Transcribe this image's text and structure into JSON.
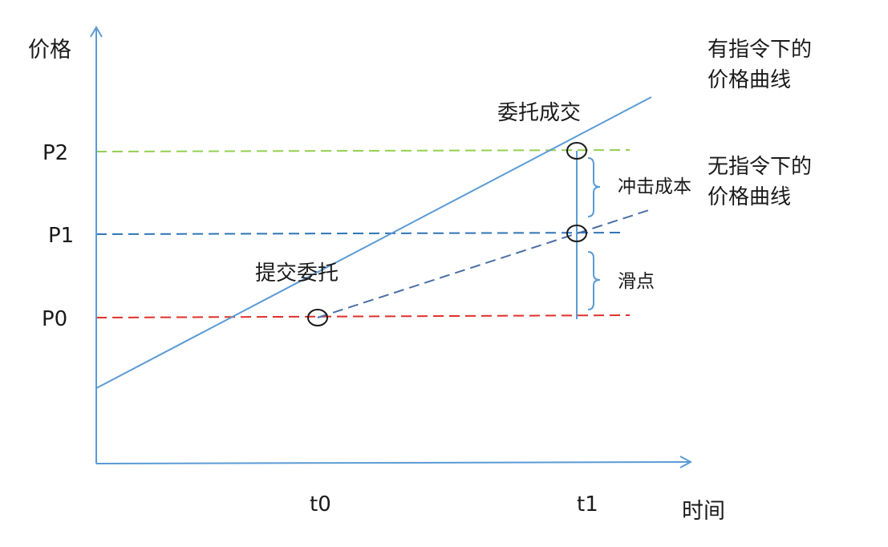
{
  "axes": {
    "y_label": "价格",
    "x_label": "时间"
  },
  "price_levels": {
    "p0": "P0",
    "p1": "P1",
    "p2": "P2"
  },
  "time_points": {
    "t0": "t0",
    "t1": "t1"
  },
  "annotations": {
    "submit_order": "提交委托",
    "order_filled": "委托成交",
    "impact_cost": "冲击成本",
    "slippage": "滑点"
  },
  "curves": {
    "with_order_line1": "有指令下的",
    "with_order_line2": "价格曲线",
    "without_order_line1": "无指令下的",
    "without_order_line2": "价格曲线"
  },
  "colors": {
    "axis": "#5b9bd5",
    "curve": "#5b9bd5",
    "p2_line": "#92d050",
    "p1_line": "#2e75b6",
    "p0_line": "#e0302b",
    "no_order_curve": "#4a6fa5"
  }
}
